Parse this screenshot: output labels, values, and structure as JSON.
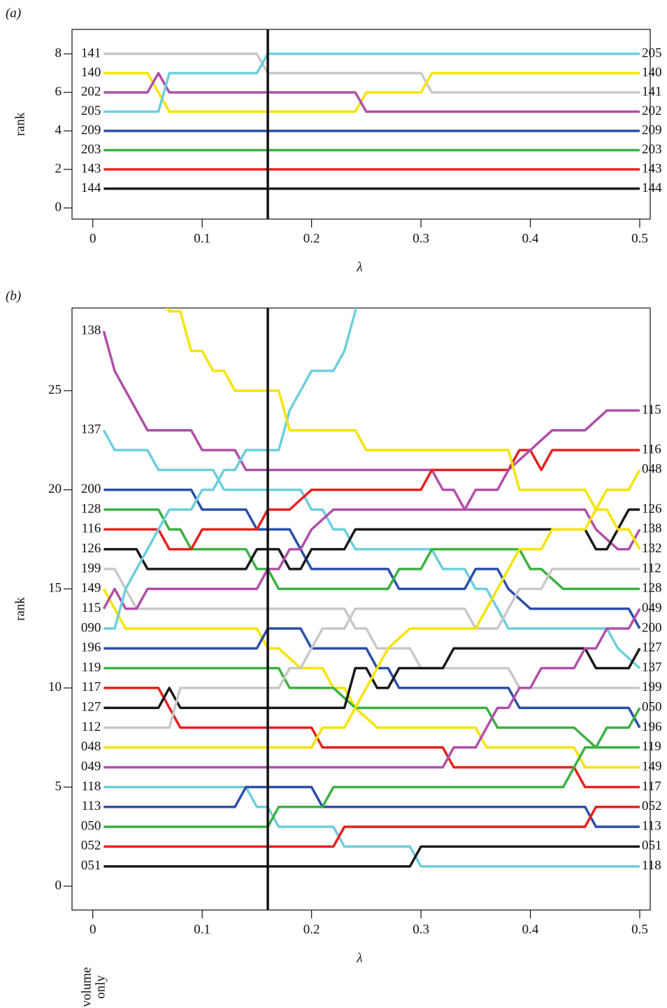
{
  "chart_data": [
    {
      "type": "line",
      "panel_label": "(a)",
      "x_label": "λ",
      "y_label": "rank",
      "xlim": [
        -0.019,
        0.5096
      ],
      "ylim": [
        -0.58,
        9.27
      ],
      "xticks": [
        0,
        0.1,
        0.2,
        0.3,
        0.4,
        0.5
      ],
      "yticks": [
        0,
        2,
        4,
        6,
        8
      ],
      "reference_x": 0.16,
      "series": [
        {
          "name": "141",
          "color": "#c8c8c8",
          "x": [
            0.01,
            0.15,
            0.16,
            0.3,
            0.31,
            0.5
          ],
          "values": [
            8,
            8,
            7,
            7,
            6,
            6
          ]
        },
        {
          "name": "140",
          "color": "#f5e400",
          "x": [
            0.01,
            0.05,
            0.07,
            0.24,
            0.25,
            0.3,
            0.31,
            0.5
          ],
          "values": [
            7,
            7,
            5,
            5,
            6,
            6,
            7,
            7
          ]
        },
        {
          "name": "202",
          "color": "#b04fa8",
          "x": [
            0.01,
            0.05,
            0.06,
            0.07,
            0.24,
            0.25,
            0.5
          ],
          "values": [
            6,
            6,
            7,
            6,
            6,
            5,
            5
          ]
        },
        {
          "name": "205",
          "color": "#6ccfdc",
          "x": [
            0.01,
            0.06,
            0.07,
            0.15,
            0.16,
            0.5
          ],
          "values": [
            5,
            5,
            7,
            7,
            8,
            8
          ]
        },
        {
          "name": "209",
          "color": "#2a4fa8",
          "x": [
            0.01,
            0.5
          ],
          "values": [
            4,
            4
          ]
        },
        {
          "name": "203",
          "color": "#3cb043",
          "x": [
            0.01,
            0.5
          ],
          "values": [
            3,
            3
          ]
        },
        {
          "name": "143",
          "color": "#e8201e",
          "x": [
            0.01,
            0.5
          ],
          "values": [
            2,
            2
          ]
        },
        {
          "name": "144",
          "color": "#1a1a1a",
          "x": [
            0.01,
            0.5
          ],
          "values": [
            1,
            1
          ]
        }
      ]
    },
    {
      "type": "line",
      "panel_label": "(b)",
      "x_label": "λ",
      "y_label": "rank",
      "annotation_lines": [
        "volume",
        "only"
      ],
      "xlim": [
        -0.019,
        0.5096
      ],
      "ylim": [
        -1.2,
        29.17
      ],
      "xticks": [
        0,
        0.1,
        0.2,
        0.3,
        0.4,
        0.5
      ],
      "yticks": [
        0,
        5,
        10,
        15,
        20,
        25
      ],
      "reference_x": 0.16,
      "series": [
        {
          "name": "138",
          "color": "#b04fa8",
          "x": [
            0.01,
            0.02,
            0.03,
            0.04,
            0.05,
            0.09,
            0.1,
            0.13,
            0.14,
            0.31,
            0.32,
            0.33,
            0.34,
            0.45,
            0.46,
            0.48,
            0.49,
            0.5
          ],
          "values": [
            28,
            26,
            25,
            24,
            23,
            23,
            22,
            22,
            21,
            21,
            20,
            20,
            19,
            19,
            18,
            17,
            17,
            18
          ]
        },
        {
          "name": "137",
          "color": "#6ccfdc",
          "x": [
            0.01,
            0.02,
            0.05,
            0.06,
            0.11,
            0.12,
            0.19,
            0.2,
            0.21,
            0.22,
            0.23,
            0.24,
            0.31,
            0.32,
            0.34,
            0.35,
            0.36,
            0.37,
            0.38,
            0.47,
            0.48,
            0.5
          ],
          "values": [
            23,
            22,
            22,
            21,
            21,
            20,
            20,
            19,
            19,
            18,
            18,
            17,
            17,
            16,
            16,
            15,
            15,
            14,
            13,
            13,
            12,
            11
          ]
        },
        {
          "name": "200",
          "color": "#2a4fa8",
          "x": [
            0.01,
            0.09,
            0.1,
            0.14,
            0.15,
            0.18,
            0.19,
            0.2,
            0.27,
            0.28,
            0.34,
            0.35,
            0.37,
            0.38,
            0.4,
            0.49,
            0.5
          ],
          "values": [
            20,
            20,
            19,
            19,
            18,
            18,
            17,
            16,
            16,
            15,
            15,
            16,
            16,
            15,
            14,
            14,
            13
          ]
        },
        {
          "name": "128",
          "color": "#3cb043",
          "x": [
            0.01,
            0.06,
            0.07,
            0.08,
            0.09,
            0.14,
            0.15,
            0.16,
            0.17,
            0.27,
            0.28,
            0.3,
            0.31,
            0.39,
            0.4,
            0.41,
            0.43,
            0.5
          ],
          "values": [
            19,
            19,
            18,
            18,
            17,
            17,
            16,
            16,
            15,
            15,
            16,
            16,
            17,
            17,
            16,
            16,
            15,
            15
          ]
        },
        {
          "name": "116",
          "color": "#e8201e",
          "x": [
            0.01,
            0.06,
            0.07,
            0.09,
            0.1,
            0.15,
            0.16,
            0.18,
            0.2,
            0.3,
            0.31,
            0.38,
            0.39,
            0.4,
            0.41,
            0.42,
            0.5
          ],
          "values": [
            18,
            18,
            17,
            17,
            18,
            18,
            19,
            19,
            20,
            20,
            21,
            21,
            22,
            22,
            21,
            22,
            22
          ]
        },
        {
          "name": "126",
          "color": "#1a1a1a",
          "x": [
            0.01,
            0.04,
            0.05,
            0.14,
            0.15,
            0.17,
            0.18,
            0.19,
            0.2,
            0.21,
            0.23,
            0.24,
            0.45,
            0.46,
            0.47,
            0.49,
            0.5
          ],
          "values": [
            17,
            17,
            16,
            16,
            17,
            17,
            16,
            16,
            17,
            17,
            17,
            18,
            18,
            17,
            17,
            19,
            19
          ]
        },
        {
          "name": "199",
          "color": "#c8c8c8",
          "x": [
            0.01,
            0.02,
            0.04,
            0.23,
            0.24,
            0.25,
            0.26,
            0.29,
            0.3,
            0.38,
            0.39,
            0.5
          ],
          "values": [
            16,
            16,
            14,
            14,
            13,
            13,
            12,
            12,
            11,
            11,
            10,
            10
          ]
        },
        {
          "name": "149",
          "color": "#f5e400",
          "x": [
            0.01,
            0.03,
            0.15,
            0.16,
            0.17,
            0.19,
            0.21,
            0.22,
            0.23,
            0.24,
            0.26,
            0.35,
            0.36,
            0.44,
            0.45,
            0.5
          ],
          "values": [
            15,
            13,
            13,
            12,
            12,
            11,
            11,
            10,
            10,
            9,
            8,
            8,
            7,
            7,
            6,
            6
          ]
        },
        {
          "name": "115",
          "color": "#b04fa8",
          "x": [
            0.01,
            0.02,
            0.03,
            0.04,
            0.05,
            0.15,
            0.16,
            0.17,
            0.18,
            0.19,
            0.2,
            0.22,
            0.34,
            0.35,
            0.37,
            0.38,
            0.4,
            0.42,
            0.45,
            0.47,
            0.5
          ],
          "values": [
            14,
            15,
            14,
            14,
            15,
            15,
            16,
            16,
            17,
            17,
            18,
            19,
            19,
            20,
            20,
            21,
            22,
            23,
            23,
            24,
            24
          ]
        },
        {
          "name": "090",
          "color": "#6ccfdc",
          "x": [
            0.01,
            0.02,
            0.03,
            0.04,
            0.05,
            0.06,
            0.07,
            0.09,
            0.1,
            0.11,
            0.12,
            0.13,
            0.14,
            0.17,
            0.18,
            0.19,
            0.2,
            0.22,
            0.23,
            0.24,
            0.25
          ],
          "values": [
            13,
            13,
            15,
            16,
            17,
            18,
            19,
            19,
            20,
            20,
            21,
            21,
            22,
            22,
            24,
            25,
            26,
            26,
            27,
            29,
            31
          ]
        },
        {
          "name": "196",
          "color": "#2a4fa8",
          "x": [
            0.01,
            0.15,
            0.16,
            0.19,
            0.2,
            0.25,
            0.26,
            0.27,
            0.28,
            0.38,
            0.39,
            0.49,
            0.5
          ],
          "values": [
            12,
            12,
            13,
            13,
            12,
            12,
            11,
            11,
            10,
            10,
            9,
            9,
            8
          ]
        },
        {
          "name": "119",
          "color": "#3cb043",
          "x": [
            0.01,
            0.17,
            0.18,
            0.22,
            0.24,
            0.36,
            0.37,
            0.44,
            0.46,
            0.5
          ],
          "values": [
            11,
            11,
            10,
            10,
            9,
            9,
            8,
            8,
            7,
            7
          ]
        },
        {
          "name": "117",
          "color": "#e8201e",
          "x": [
            0.01,
            0.06,
            0.08,
            0.2,
            0.21,
            0.32,
            0.33,
            0.44,
            0.45,
            0.5
          ],
          "values": [
            10,
            10,
            8,
            8,
            7,
            7,
            6,
            6,
            5,
            5
          ]
        },
        {
          "name": "127",
          "color": "#1a1a1a",
          "x": [
            0.01,
            0.06,
            0.07,
            0.08,
            0.23,
            0.24,
            0.25,
            0.26,
            0.27,
            0.28,
            0.32,
            0.33,
            0.45,
            0.46,
            0.49,
            0.5
          ],
          "values": [
            9,
            9,
            10,
            9,
            9,
            11,
            11,
            10,
            10,
            11,
            11,
            12,
            12,
            11,
            11,
            12
          ]
        },
        {
          "name": "112",
          "color": "#c8c8c8",
          "x": [
            0.01,
            0.07,
            0.08,
            0.17,
            0.18,
            0.19,
            0.2,
            0.21,
            0.23,
            0.24,
            0.34,
            0.35,
            0.37,
            0.38,
            0.39,
            0.41,
            0.42,
            0.5
          ],
          "values": [
            8,
            8,
            10,
            10,
            11,
            11,
            12,
            13,
            13,
            14,
            14,
            13,
            13,
            14,
            15,
            15,
            16,
            16
          ]
        },
        {
          "name": "048",
          "color": "#f5e400",
          "x": [
            0.01,
            0.2,
            0.21,
            0.23,
            0.24,
            0.25,
            0.26,
            0.27,
            0.29,
            0.35,
            0.36,
            0.37,
            0.38,
            0.39,
            0.41,
            0.42,
            0.45,
            0.46,
            0.47,
            0.49,
            0.5
          ],
          "values": [
            7,
            7,
            8,
            8,
            9,
            10,
            11,
            12,
            13,
            13,
            14,
            15,
            16,
            17,
            17,
            18,
            18,
            19,
            20,
            20,
            21
          ]
        },
        {
          "name": "049",
          "color": "#b04fa8",
          "x": [
            0.01,
            0.32,
            0.33,
            0.35,
            0.37,
            0.38,
            0.39,
            0.4,
            0.41,
            0.44,
            0.45,
            0.46,
            0.47,
            0.49,
            0.5
          ],
          "values": [
            6,
            6,
            7,
            7,
            9,
            9,
            10,
            10,
            11,
            11,
            12,
            12,
            13,
            13,
            14
          ]
        },
        {
          "name": "118",
          "color": "#6ccfdc",
          "x": [
            0.01,
            0.14,
            0.15,
            0.16,
            0.17,
            0.22,
            0.23,
            0.29,
            0.3,
            0.5
          ],
          "values": [
            5,
            5,
            4,
            4,
            3,
            3,
            2,
            2,
            1,
            1
          ]
        },
        {
          "name": "113",
          "color": "#2a4fa8",
          "x": [
            0.01,
            0.13,
            0.14,
            0.2,
            0.21,
            0.45,
            0.46,
            0.5
          ],
          "values": [
            4,
            4,
            5,
            5,
            4,
            4,
            3,
            3
          ]
        },
        {
          "name": "050",
          "color": "#3cb043",
          "x": [
            0.01,
            0.16,
            0.17,
            0.21,
            0.22,
            0.43,
            0.45,
            0.46,
            0.47,
            0.49,
            0.5
          ],
          "values": [
            3,
            3,
            4,
            4,
            5,
            5,
            7,
            7,
            8,
            8,
            9
          ]
        },
        {
          "name": "052",
          "color": "#e8201e",
          "x": [
            0.01,
            0.22,
            0.23,
            0.45,
            0.46,
            0.5
          ],
          "values": [
            2,
            2,
            3,
            3,
            4,
            4
          ]
        },
        {
          "name": "051",
          "color": "#1a1a1a",
          "x": [
            0.01,
            0.29,
            0.3,
            0.5
          ],
          "values": [
            1,
            1,
            2,
            2
          ]
        },
        {
          "name": "132",
          "color": "#f5e400",
          "x": [
            0.06,
            0.07,
            0.08,
            0.09,
            0.1,
            0.11,
            0.12,
            0.13,
            0.17,
            0.18,
            0.24,
            0.25,
            0.38,
            0.39,
            0.45,
            0.46,
            0.47,
            0.48,
            0.49,
            0.5
          ],
          "values": [
            30,
            29,
            29,
            27,
            27,
            26,
            26,
            25,
            25,
            23,
            23,
            22,
            22,
            20,
            20,
            19,
            19,
            18,
            18,
            17
          ]
        }
      ]
    }
  ]
}
